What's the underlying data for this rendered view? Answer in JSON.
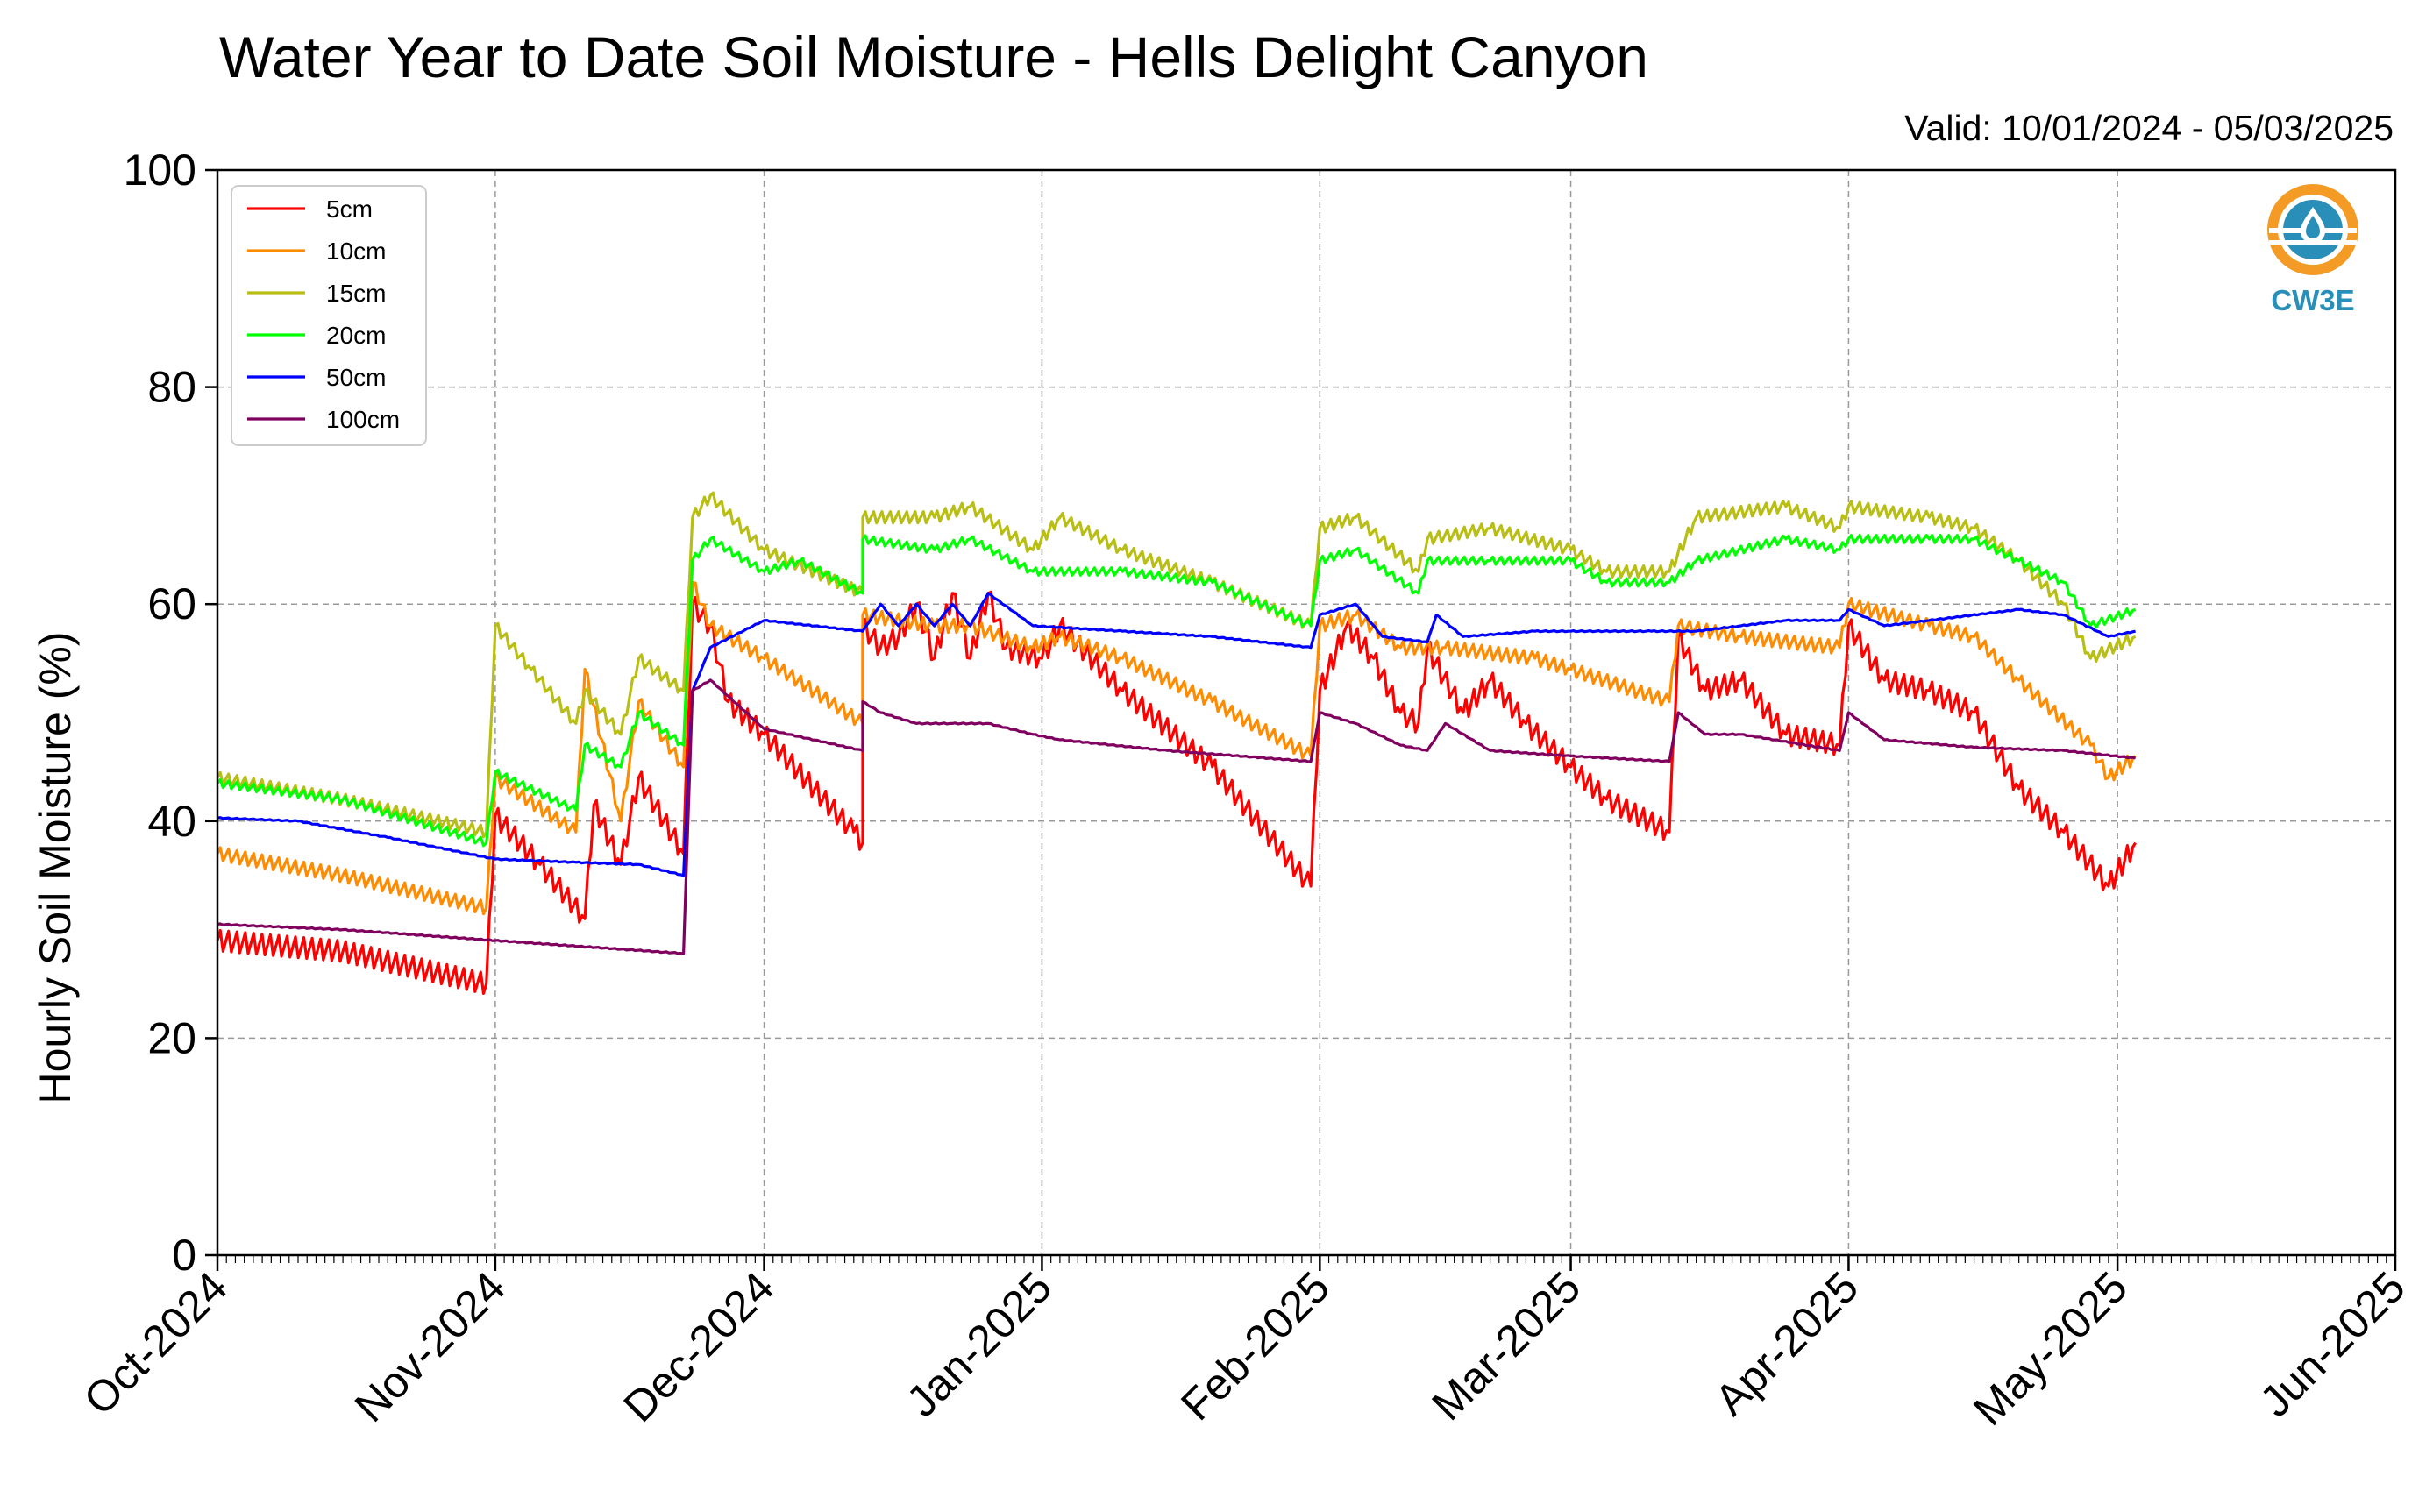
{
  "chart_data": {
    "type": "line",
    "title": "Water Year to Date Soil Moisture - Hells Delight Canyon",
    "subtitle": "Valid: 10/01/2024 - 05/03/2025",
    "ylabel": "Hourly Soil Moisture (%)",
    "xlabel": "",
    "ylim": [
      0,
      100
    ],
    "yticks": [
      0,
      20,
      40,
      60,
      80,
      100
    ],
    "xlim": [
      "2024-10-01",
      "2025-06-01"
    ],
    "xticks": [
      "Oct-2024",
      "Nov-2024",
      "Dec-2024",
      "Jan-2025",
      "Feb-2025",
      "Mar-2025",
      "Apr-2025",
      "May-2025",
      "Jun-2025"
    ],
    "grid": true,
    "legend_position": "top-left",
    "logo_text": "CW3E",
    "series": [
      {
        "name": "5cm",
        "color": "#ff0000",
        "points": [
          [
            "2024-10-01",
            29
          ],
          [
            "2024-10-15",
            28
          ],
          [
            "2024-10-31",
            25
          ],
          [
            "2024-11-01",
            40.5
          ],
          [
            "2024-11-06",
            36
          ],
          [
            "2024-11-11",
            31
          ],
          [
            "2024-11-12",
            41.5
          ],
          [
            "2024-11-15",
            36
          ],
          [
            "2024-11-17",
            44
          ],
          [
            "2024-11-22",
            37
          ],
          [
            "2024-11-23",
            60
          ],
          [
            "2024-11-25",
            58
          ],
          [
            "2024-11-27",
            51
          ],
          [
            "2024-12-01",
            48
          ],
          [
            "2024-12-11",
            39
          ],
          [
            "2024-12-12",
            38
          ],
          [
            "2024-12-12",
            58
          ],
          [
            "2024-12-14",
            56
          ],
          [
            "2024-12-16",
            57
          ],
          [
            "2024-12-18",
            60
          ],
          [
            "2024-12-20",
            55
          ],
          [
            "2024-12-22",
            61
          ],
          [
            "2024-12-24",
            55
          ],
          [
            "2024-12-26",
            61
          ],
          [
            "2024-12-28",
            56
          ],
          [
            "2025-01-01",
            55
          ],
          [
            "2025-01-03",
            58
          ],
          [
            "2025-01-10",
            52
          ],
          [
            "2025-01-20",
            45
          ],
          [
            "2025-01-31",
            34
          ],
          [
            "2025-02-01",
            52
          ],
          [
            "2025-02-04",
            58
          ],
          [
            "2025-02-07",
            55
          ],
          [
            "2025-02-10",
            50
          ],
          [
            "2025-02-12",
            49
          ],
          [
            "2025-02-13",
            56
          ],
          [
            "2025-02-17",
            50
          ],
          [
            "2025-02-20",
            53
          ],
          [
            "2025-02-24",
            49
          ],
          [
            "2025-03-01",
            45
          ],
          [
            "2025-03-05",
            42
          ],
          [
            "2025-03-12",
            39
          ],
          [
            "2025-03-13",
            57
          ],
          [
            "2025-03-16",
            52
          ],
          [
            "2025-03-20",
            53
          ],
          [
            "2025-03-25",
            48
          ],
          [
            "2025-03-31",
            47
          ],
          [
            "2025-04-01",
            58
          ],
          [
            "2025-04-05",
            53
          ],
          [
            "2025-04-10",
            52
          ],
          [
            "2025-04-15",
            50
          ],
          [
            "2025-04-20",
            43
          ],
          [
            "2025-04-25",
            39
          ],
          [
            "2025-04-30",
            34
          ],
          [
            "2025-05-03",
            38
          ]
        ]
      },
      {
        "name": "10cm",
        "color": "#ff8c00",
        "points": [
          [
            "2024-10-01",
            37
          ],
          [
            "2024-10-15",
            35
          ],
          [
            "2024-10-31",
            32
          ],
          [
            "2024-11-01",
            44
          ],
          [
            "2024-11-10",
            39
          ],
          [
            "2024-11-11",
            54
          ],
          [
            "2024-11-15",
            40
          ],
          [
            "2024-11-17",
            51
          ],
          [
            "2024-11-22",
            45
          ],
          [
            "2024-11-23",
            62
          ],
          [
            "2024-11-25",
            58
          ],
          [
            "2024-12-01",
            55
          ],
          [
            "2024-12-12",
            49
          ],
          [
            "2024-12-12",
            59
          ],
          [
            "2024-12-20",
            58
          ],
          [
            "2024-12-24",
            58
          ],
          [
            "2024-12-31",
            56
          ],
          [
            "2025-01-03",
            57
          ],
          [
            "2025-01-10",
            55
          ],
          [
            "2025-01-20",
            51
          ],
          [
            "2025-01-31",
            46
          ],
          [
            "2025-02-01",
            58
          ],
          [
            "2025-02-05",
            59
          ],
          [
            "2025-02-10",
            56
          ],
          [
            "2025-02-15",
            56
          ],
          [
            "2025-02-25",
            55
          ],
          [
            "2025-03-01",
            54
          ],
          [
            "2025-03-12",
            51
          ],
          [
            "2025-03-13",
            58
          ],
          [
            "2025-03-20",
            57
          ],
          [
            "2025-03-31",
            56
          ],
          [
            "2025-04-01",
            60
          ],
          [
            "2025-04-10",
            58
          ],
          [
            "2025-04-15",
            57
          ],
          [
            "2025-04-20",
            53
          ],
          [
            "2025-04-28",
            47
          ],
          [
            "2025-04-30",
            44
          ],
          [
            "2025-05-03",
            46
          ]
        ]
      },
      {
        "name": "15cm",
        "color": "#b8be14",
        "points": [
          [
            "2024-10-01",
            44
          ],
          [
            "2024-10-15",
            42
          ],
          [
            "2024-10-31",
            39
          ],
          [
            "2024-11-01",
            58
          ],
          [
            "2024-11-05",
            54
          ],
          [
            "2024-11-10",
            49
          ],
          [
            "2024-11-11",
            52
          ],
          [
            "2024-11-15",
            48
          ],
          [
            "2024-11-17",
            55
          ],
          [
            "2024-11-22",
            52
          ],
          [
            "2024-11-23",
            68
          ],
          [
            "2024-11-25",
            70
          ],
          [
            "2024-12-01",
            65
          ],
          [
            "2024-12-12",
            61
          ],
          [
            "2024-12-12",
            68
          ],
          [
            "2024-12-20",
            68
          ],
          [
            "2024-12-24",
            69
          ],
          [
            "2024-12-31",
            65
          ],
          [
            "2025-01-03",
            68
          ],
          [
            "2025-01-10",
            65
          ],
          [
            "2025-01-20",
            62
          ],
          [
            "2025-01-31",
            58
          ],
          [
            "2025-02-01",
            67
          ],
          [
            "2025-02-05",
            68
          ],
          [
            "2025-02-12",
            63
          ],
          [
            "2025-02-13",
            66
          ],
          [
            "2025-02-20",
            67
          ],
          [
            "2025-03-01",
            65
          ],
          [
            "2025-03-05",
            63
          ],
          [
            "2025-03-12",
            63
          ],
          [
            "2025-03-15",
            68
          ],
          [
            "2025-03-25",
            69
          ],
          [
            "2025-03-31",
            67
          ],
          [
            "2025-04-01",
            69
          ],
          [
            "2025-04-10",
            68
          ],
          [
            "2025-04-15",
            67
          ],
          [
            "2025-04-20",
            64
          ],
          [
            "2025-04-25",
            60
          ],
          [
            "2025-04-28",
            55
          ],
          [
            "2025-05-03",
            57
          ]
        ]
      },
      {
        "name": "20cm",
        "color": "#00ff00",
        "points": [
          [
            "2024-10-01",
            43.5
          ],
          [
            "2024-10-15",
            42
          ],
          [
            "2024-10-31",
            38
          ],
          [
            "2024-11-01",
            44.5
          ],
          [
            "2024-11-10",
            41
          ],
          [
            "2024-11-11",
            47
          ],
          [
            "2024-11-15",
            45
          ],
          [
            "2024-11-17",
            50
          ],
          [
            "2024-11-22",
            47
          ],
          [
            "2024-11-23",
            64
          ],
          [
            "2024-11-25",
            66
          ],
          [
            "2024-12-01",
            63
          ],
          [
            "2024-12-05",
            64
          ],
          [
            "2024-12-12",
            61
          ],
          [
            "2024-12-12",
            66
          ],
          [
            "2024-12-20",
            65
          ],
          [
            "2024-12-24",
            66
          ],
          [
            "2024-12-31",
            63
          ],
          [
            "2025-01-10",
            63
          ],
          [
            "2025-01-20",
            62
          ],
          [
            "2025-01-31",
            58
          ],
          [
            "2025-02-01",
            64
          ],
          [
            "2025-02-05",
            65
          ],
          [
            "2025-02-12",
            61
          ],
          [
            "2025-02-13",
            64
          ],
          [
            "2025-02-20",
            64
          ],
          [
            "2025-03-01",
            64
          ],
          [
            "2025-03-05",
            62
          ],
          [
            "2025-03-12",
            62
          ],
          [
            "2025-03-15",
            64
          ],
          [
            "2025-03-25",
            66
          ],
          [
            "2025-03-31",
            65
          ],
          [
            "2025-04-01",
            66
          ],
          [
            "2025-04-10",
            66
          ],
          [
            "2025-04-15",
            66
          ],
          [
            "2025-04-20",
            64
          ],
          [
            "2025-04-25",
            62
          ],
          [
            "2025-04-28",
            58
          ],
          [
            "2025-05-03",
            59.5
          ]
        ]
      },
      {
        "name": "50cm",
        "color": "#0000ff",
        "points": [
          [
            "2024-10-01",
            40.3
          ],
          [
            "2024-10-10",
            40
          ],
          [
            "2024-10-20",
            38.5
          ],
          [
            "2024-11-01",
            36.5
          ],
          [
            "2024-11-10",
            36.2
          ],
          [
            "2024-11-17",
            36
          ],
          [
            "2024-11-22",
            35
          ],
          [
            "2024-11-23",
            52
          ],
          [
            "2024-11-25",
            56
          ],
          [
            "2024-12-01",
            58.5
          ],
          [
            "2024-12-12",
            57.5
          ],
          [
            "2024-12-14",
            60
          ],
          [
            "2024-12-16",
            58
          ],
          [
            "2024-12-18",
            60
          ],
          [
            "2024-12-20",
            58
          ],
          [
            "2024-12-22",
            60
          ],
          [
            "2024-12-24",
            58
          ],
          [
            "2024-12-26",
            61
          ],
          [
            "2024-12-31",
            58
          ],
          [
            "2025-01-10",
            57.5
          ],
          [
            "2025-01-20",
            57
          ],
          [
            "2025-01-31",
            56
          ],
          [
            "2025-02-01",
            59
          ],
          [
            "2025-02-05",
            60
          ],
          [
            "2025-02-08",
            57
          ],
          [
            "2025-02-13",
            56.5
          ],
          [
            "2025-02-14",
            59
          ],
          [
            "2025-02-17",
            57
          ],
          [
            "2025-02-25",
            57.5
          ],
          [
            "2025-03-01",
            57.5
          ],
          [
            "2025-03-10",
            57.5
          ],
          [
            "2025-03-15",
            57.5
          ],
          [
            "2025-03-20",
            58
          ],
          [
            "2025-03-25",
            58.5
          ],
          [
            "2025-03-31",
            58.5
          ],
          [
            "2025-04-01",
            59.5
          ],
          [
            "2025-04-05",
            58
          ],
          [
            "2025-04-10",
            58.5
          ],
          [
            "2025-04-20",
            59.5
          ],
          [
            "2025-04-25",
            59
          ],
          [
            "2025-04-30",
            57
          ],
          [
            "2025-05-03",
            57.5
          ]
        ]
      },
      {
        "name": "100cm",
        "color": "#800060",
        "points": [
          [
            "2024-10-01",
            30.5
          ],
          [
            "2024-10-15",
            30
          ],
          [
            "2024-11-01",
            29
          ],
          [
            "2024-11-15",
            28.2
          ],
          [
            "2024-11-22",
            27.8
          ],
          [
            "2024-11-23",
            52
          ],
          [
            "2024-11-25",
            53
          ],
          [
            "2024-12-01",
            48.5
          ],
          [
            "2024-12-12",
            46.5
          ],
          [
            "2024-12-12",
            51
          ],
          [
            "2024-12-14",
            50
          ],
          [
            "2024-12-18",
            49
          ],
          [
            "2024-12-22",
            49
          ],
          [
            "2024-12-26",
            49
          ],
          [
            "2024-12-31",
            48
          ],
          [
            "2025-01-03",
            47.5
          ],
          [
            "2025-01-15",
            46.5
          ],
          [
            "2025-01-31",
            45.5
          ],
          [
            "2025-02-01",
            50
          ],
          [
            "2025-02-05",
            49
          ],
          [
            "2025-02-10",
            47
          ],
          [
            "2025-02-13",
            46.5
          ],
          [
            "2025-02-15",
            49
          ],
          [
            "2025-02-20",
            46.5
          ],
          [
            "2025-03-01",
            46
          ],
          [
            "2025-03-12",
            45.5
          ],
          [
            "2025-03-13",
            50
          ],
          [
            "2025-03-16",
            48
          ],
          [
            "2025-03-20",
            48
          ],
          [
            "2025-03-31",
            46.5
          ],
          [
            "2025-04-01",
            50
          ],
          [
            "2025-04-05",
            47.5
          ],
          [
            "2025-04-15",
            46.8
          ],
          [
            "2025-04-25",
            46.5
          ],
          [
            "2025-05-03",
            45.8
          ]
        ]
      }
    ]
  }
}
